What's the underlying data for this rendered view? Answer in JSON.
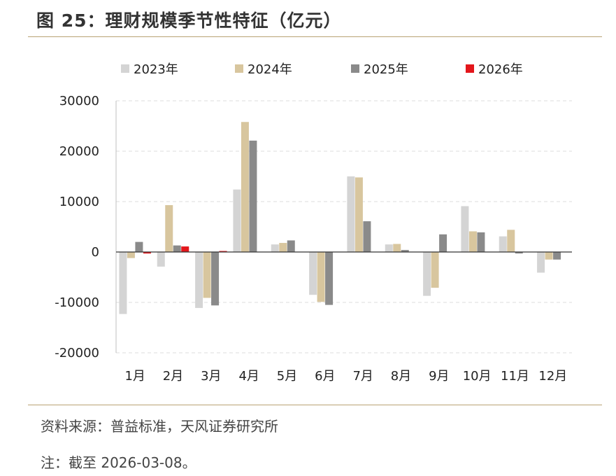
{
  "title": "图 25：理财规模季节性特征（亿元）",
  "source": "资料来源：普益标准，天风证券研究所",
  "note": "注：截至 2026-03-08。",
  "chart_data": {
    "type": "bar",
    "title": "",
    "xlabel": "",
    "ylabel": "",
    "ylim": [
      -20000,
      30000
    ],
    "yticks": [
      30000,
      20000,
      10000,
      0,
      -10000,
      -20000
    ],
    "grid": true,
    "legend_position": "top",
    "categories": [
      "1月",
      "2月",
      "3月",
      "4月",
      "5月",
      "6月",
      "7月",
      "8月",
      "9月",
      "10月",
      "11月",
      "12月"
    ],
    "series": [
      {
        "name": "2023年",
        "color": "#d4d4d4",
        "values": [
          -12300,
          -2900,
          -11100,
          12400,
          1500,
          -8500,
          15000,
          1500,
          -8700,
          9100,
          3100,
          -4100
        ]
      },
      {
        "name": "2024年",
        "color": "#d8c69e",
        "values": [
          -1200,
          9300,
          -9100,
          25800,
          1800,
          -9900,
          14800,
          1600,
          -7100,
          4100,
          4400,
          -1500
        ]
      },
      {
        "name": "2025年",
        "color": "#8a8a8a",
        "values": [
          2000,
          1300,
          -10600,
          22100,
          2300,
          -10500,
          6100,
          400,
          3500,
          3900,
          -300,
          -1500
        ]
      },
      {
        "name": "2026年",
        "color": "#e3161b",
        "values": [
          -300,
          1100,
          200,
          null,
          null,
          null,
          null,
          null,
          null,
          null,
          null,
          null
        ]
      }
    ]
  }
}
